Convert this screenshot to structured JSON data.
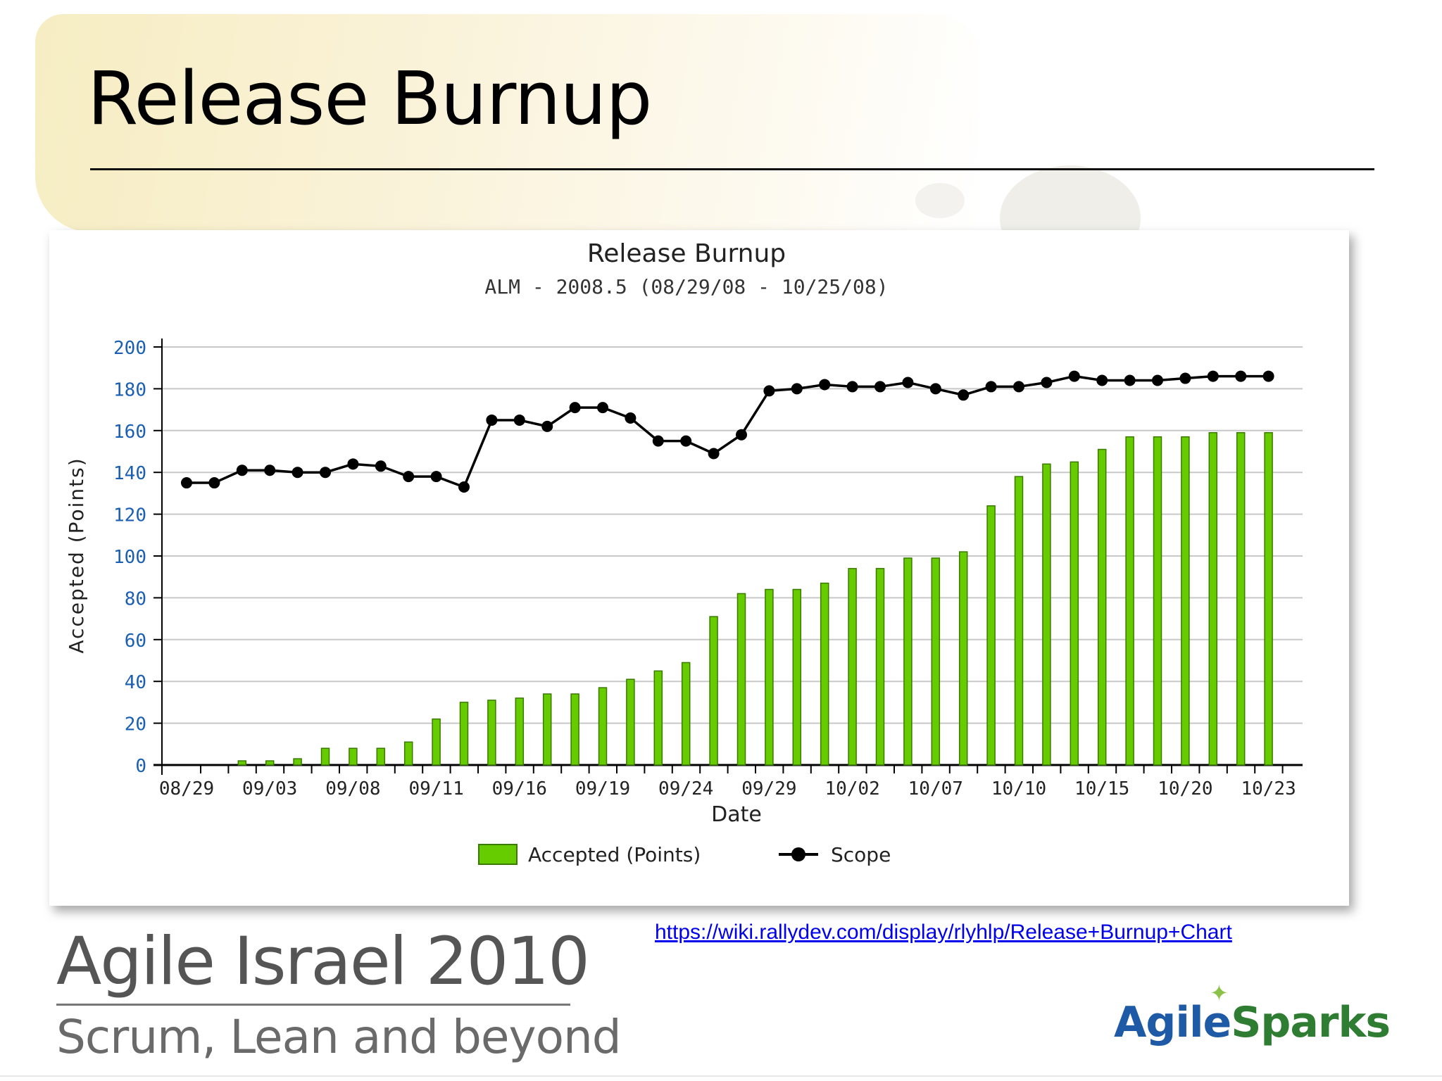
{
  "slide": {
    "title": "Release Burnup",
    "source_link": "https://wiki.rallydev.com/display/rlyhlp/Release+Burnup+Chart",
    "brand_main": "Agile Israel 2010",
    "brand_sub": "Scrum, Lean and beyond",
    "logo_part1": "Agile",
    "logo_part2": "Sparks"
  },
  "colors": {
    "bar_fill": "#66cc00",
    "bar_stroke": "#3a7a00",
    "scope_line": "#000000",
    "tick_label_y": "#1a5fb4",
    "grid": "#c8c8c8"
  },
  "chart_data": {
    "type": "bar",
    "title": "Release Burnup",
    "subtitle": "ALM - 2008.5 (08/29/08 - 10/25/08)",
    "xlabel": "Date",
    "ylabel": "Accepted (Points)",
    "ylim": [
      0,
      200
    ],
    "yticks": [
      0,
      20,
      40,
      60,
      80,
      100,
      120,
      140,
      160,
      180,
      200
    ],
    "grid": true,
    "legend_position": "bottom-center",
    "x_tick_labels": [
      "08/29",
      "09/03",
      "09/08",
      "09/11",
      "09/16",
      "09/19",
      "09/24",
      "09/29",
      "10/02",
      "10/07",
      "10/10",
      "10/15",
      "10/20",
      "10/23"
    ],
    "x_tick_label_every": 3,
    "series": [
      {
        "name": "Accepted (Points)",
        "type": "bar",
        "values": [
          0,
          0,
          2,
          2,
          3,
          8,
          8,
          8,
          11,
          22,
          30,
          31,
          32,
          34,
          34,
          37,
          41,
          45,
          49,
          71,
          82,
          84,
          84,
          87,
          94,
          94,
          99,
          99,
          102,
          124,
          138,
          144,
          145,
          151,
          157,
          157,
          157,
          159,
          159,
          159
        ]
      },
      {
        "name": "Scope",
        "type": "line",
        "values": [
          135,
          135,
          141,
          141,
          140,
          140,
          144,
          143,
          138,
          138,
          133,
          165,
          165,
          162,
          171,
          171,
          166,
          155,
          155,
          149,
          158,
          179,
          180,
          182,
          181,
          181,
          183,
          180,
          177,
          181,
          181,
          183,
          186,
          184,
          184,
          184,
          185,
          186,
          186,
          186
        ]
      }
    ]
  }
}
